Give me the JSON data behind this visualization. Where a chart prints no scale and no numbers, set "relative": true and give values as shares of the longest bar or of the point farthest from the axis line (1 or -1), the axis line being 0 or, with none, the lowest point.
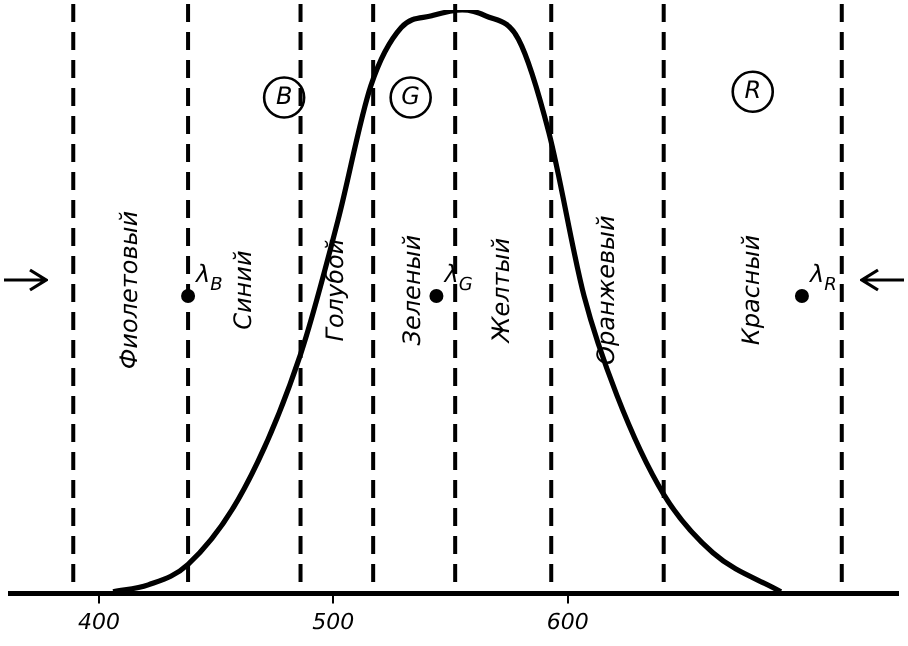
{
  "chart_data": {
    "type": "line",
    "relative": true,
    "x": [
      406,
      421,
      438,
      462,
      486,
      502,
      516,
      529,
      542,
      555,
      565,
      579,
      592,
      607,
      621,
      641,
      662,
      691
    ],
    "series": [
      {
        "color": "#000000",
        "values": [
          0.003,
          0.015,
          0.05,
          0.18,
          0.41,
          0.64,
          0.87,
          0.97,
          0.99,
          1.0,
          0.99,
          0.95,
          0.79,
          0.51,
          0.34,
          0.17,
          0.07,
          0.003
        ]
      },
      {
        "type": "scatter",
        "marker": "circle",
        "name": "λ$_{B}$",
        "color": "#000000",
        "x": [
          438
        ],
        "values": [
          0.51
        ]
      },
      {
        "type": "scatter",
        "marker": "circle",
        "name": "λ$_{G}$",
        "color": "#000000",
        "x": [
          544
        ],
        "values": [
          0.51
        ]
      },
      {
        "type": "scatter",
        "marker": "circle",
        "name": "λ$_{R}$",
        "color": "#000000",
        "x": [
          700
        ],
        "values": [
          0.51
        ]
      }
    ],
    "xlim": [
      362,
      741
    ],
    "xticks": [
      400,
      500,
      600
    ],
    "ref_lines": [
      {
        "axis": "x",
        "value": 389,
        "line_style": "dashed"
      },
      {
        "axis": "x",
        "value": 438,
        "line_style": "dashed"
      },
      {
        "axis": "x",
        "value": 486,
        "line_style": "dashed"
      },
      {
        "axis": "x",
        "value": 517,
        "line_style": "dashed"
      },
      {
        "axis": "x",
        "value": 552,
        "line_style": "dashed"
      },
      {
        "axis": "x",
        "value": 593,
        "line_style": "dashed"
      },
      {
        "axis": "x",
        "value": 641,
        "line_style": "dashed"
      },
      {
        "axis": "x",
        "value": 717,
        "line_style": "dashed"
      }
    ],
    "annotations": [
      {
        "text": "B",
        "x": 479,
        "y": 0.85
      },
      {
        "text": "G",
        "x": 533,
        "y": 0.85
      },
      {
        "text": "R",
        "x": 679,
        "y": 0.86
      },
      "Фиолетовый",
      "Синий",
      "Голубой",
      "Зеленый",
      "Желтый",
      "Оранжевый",
      "Красный"
    ],
    "grid": false
  }
}
